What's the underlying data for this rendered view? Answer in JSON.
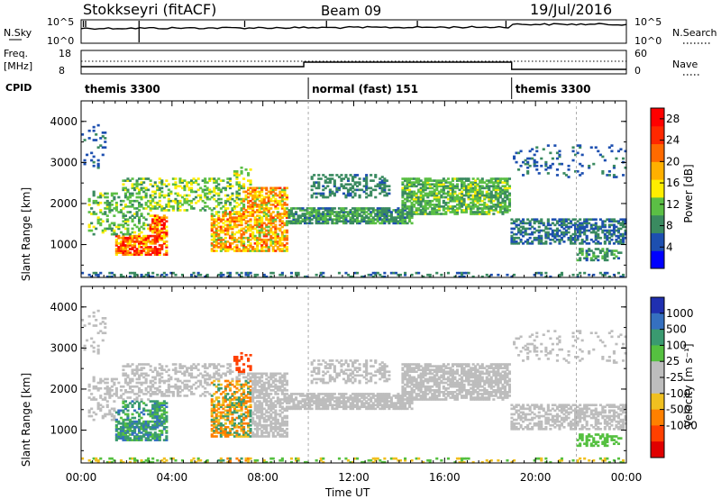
{
  "header": {
    "title": "Stokkseyri (fitACF)",
    "beam": "Beam 09",
    "date": "19/Jul/2016"
  },
  "strip": {
    "nsky_label": "N.Sky",
    "nsky_ticks": [
      "10^5",
      "10^0"
    ],
    "nsearch_label": "N.Search",
    "nsearch_ticks": [
      "10^5",
      "10^0"
    ],
    "freq_label_1": "Freq.",
    "freq_label_2": "[MHz]",
    "freq_ticks": [
      "18",
      "8"
    ],
    "nave_label": "Nave",
    "nave_ticks": [
      "60",
      "0"
    ],
    "cpid_label": "CPID",
    "cpid_segments": [
      {
        "label": "themis 3300",
        "start_hour": 0,
        "end_hour": 10
      },
      {
        "label": "normal (fast) 151",
        "start_hour": 10,
        "end_hour": 18.95
      },
      {
        "label": "themis 3300",
        "start_hour": 18.95,
        "end_hour": 24
      }
    ]
  },
  "colors": {
    "power_scale": [
      "#0000ff",
      "#1d4fb0",
      "#3a8a60",
      "#5bbf45",
      "#ffee00",
      "#ffb000",
      "#ff6a00",
      "#ff2800",
      "#ff0000"
    ],
    "velocity_scale": [
      "#2030b0",
      "#3570c0",
      "#3a9a70",
      "#55c040",
      "#bdbdbd",
      "#bdbdbd",
      "#f0c020",
      "#ff8000",
      "#ff4000",
      "#e00000"
    ]
  },
  "chart_data": [
    {
      "type": "heatmap",
      "name": "power",
      "ylabel": "Slant Range [km]",
      "ylim": [
        200,
        4500
      ],
      "yticks": [
        "1000",
        "2000",
        "3000",
        "4000"
      ],
      "xticks": [
        "00:00",
        "04:00",
        "08:00",
        "12:00",
        "16:00",
        "20:00",
        "00:00"
      ],
      "xlim_hours": [
        0,
        24
      ],
      "colorbar_label": "Power [dB]",
      "colorbar_ticks": [
        "4",
        "8",
        "12",
        "16",
        "20",
        "24",
        "28"
      ],
      "colorbar_range": [
        0,
        30
      ]
    },
    {
      "type": "heatmap",
      "name": "velocity",
      "ylabel": "Slant Range [km]",
      "ylim": [
        200,
        4500
      ],
      "yticks": [
        "1000",
        "2000",
        "3000",
        "4000"
      ],
      "xticks": [
        "00:00",
        "04:00",
        "08:00",
        "12:00",
        "16:00",
        "20:00",
        "00:00"
      ],
      "xlabel": "Time UT",
      "xlim_hours": [
        0,
        24
      ],
      "colorbar_label": "Velocity [m s⁻¹]",
      "colorbar_ticks": [
        "1000",
        "500",
        "100",
        "25",
        "-25",
        "-100",
        "-500",
        "-1000"
      ]
    }
  ]
}
